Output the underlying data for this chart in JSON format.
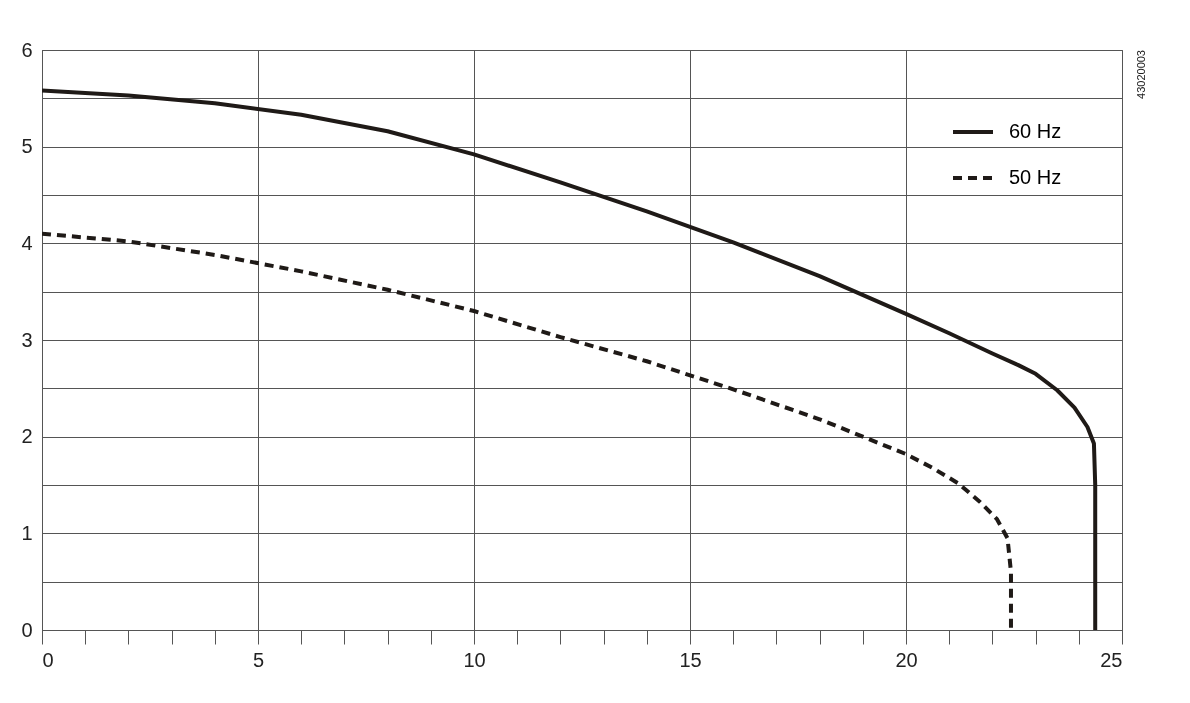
{
  "chart_data": {
    "type": "line",
    "xlim": [
      0,
      25
    ],
    "ylim": [
      0,
      6
    ],
    "xticks": [
      0,
      {
        "value": 1,
        "label": null
      },
      {
        "value": 2,
        "label": null
      },
      {
        "value": 3,
        "label": null
      },
      {
        "value": 4,
        "label": null
      },
      5,
      {
        "value": 6,
        "label": null
      },
      {
        "value": 7,
        "label": null
      },
      {
        "value": 8,
        "label": null
      },
      {
        "value": 9,
        "label": null
      },
      10,
      {
        "value": 11,
        "label": null
      },
      {
        "value": 12,
        "label": null
      },
      {
        "value": 13,
        "label": null
      },
      {
        "value": 14,
        "label": null
      },
      15,
      {
        "value": 16,
        "label": null
      },
      {
        "value": 17,
        "label": null
      },
      {
        "value": 18,
        "label": null
      },
      {
        "value": 19,
        "label": null
      },
      20,
      {
        "value": 21,
        "label": null
      },
      {
        "value": 22,
        "label": null
      },
      {
        "value": 23,
        "label": null
      },
      {
        "value": 24,
        "label": null
      },
      25
    ],
    "yticks": [
      0,
      {
        "value": 0.5,
        "label": null
      },
      1,
      {
        "value": 1.5,
        "label": null
      },
      2,
      {
        "value": 2.5,
        "label": null
      },
      3,
      {
        "value": 3.5,
        "label": null
      },
      4,
      {
        "value": 4.5,
        "label": null
      },
      5,
      {
        "value": 5.5,
        "label": null
      },
      6
    ],
    "grid": true,
    "legend": "top right",
    "marker": "none",
    "annotations": [
      "43020003"
    ],
    "series": [
      {
        "name": "60 Hz",
        "color": "#1f1a17",
        "line_style": "solid",
        "x": [
          0,
          2,
          4,
          6,
          8,
          10,
          12,
          14,
          16,
          18,
          20,
          21,
          22,
          22.6,
          23,
          23.5,
          23.9,
          24.2,
          24.35,
          24.38,
          24.38
        ],
        "values": [
          5.58,
          5.53,
          5.45,
          5.33,
          5.16,
          4.92,
          4.63,
          4.33,
          4.01,
          3.66,
          3.27,
          3.07,
          2.86,
          2.74,
          2.65,
          2.48,
          2.3,
          2.1,
          1.93,
          1.5,
          0
        ]
      },
      {
        "name": "50 Hz",
        "color": "#1f1a17",
        "line_style": "dashed",
        "x": [
          0,
          2,
          4,
          6,
          8,
          10,
          12,
          14,
          16,
          18,
          19,
          20,
          20.6,
          21.2,
          21.7,
          22.1,
          22.35,
          22.43,
          22.43
        ],
        "values": [
          4.1,
          4.02,
          3.88,
          3.71,
          3.52,
          3.3,
          3.03,
          2.78,
          2.49,
          2.18,
          2.0,
          1.82,
          1.68,
          1.52,
          1.33,
          1.15,
          0.95,
          0.6,
          0
        ]
      }
    ]
  }
}
